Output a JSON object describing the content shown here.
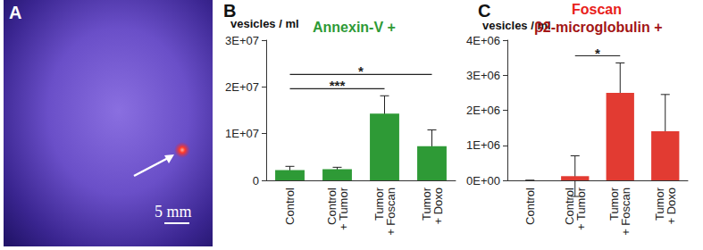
{
  "image_panel": {
    "label": "A",
    "scale_bar": "5 mm"
  },
  "chart_data": [
    {
      "type": "bar",
      "panel": "B",
      "title": "Annexin-V +",
      "ylabel": "vesicles / ml",
      "categories": [
        "Control",
        "Control + Tumor",
        "Tumor + Foscan",
        "Tumor + Doxo"
      ],
      "values": [
        2200000,
        2400000,
        14300000,
        7300000
      ],
      "errors": [
        800000,
        400000,
        3800000,
        3500000
      ],
      "color": "#2e9a36",
      "ylim": [
        0,
        30000000
      ],
      "yticks": [
        0,
        {
          "value": 10000000,
          "label": "1E+07"
        },
        {
          "value": 20000000,
          "label": "2E+07"
        },
        {
          "value": 30000000,
          "label": "3E+07"
        }
      ],
      "grid": false,
      "annotations": [
        {
          "between": [
            "Control",
            "Tumor + Foscan"
          ],
          "text": "***"
        },
        {
          "between": [
            "Control",
            "Tumor + Doxo"
          ],
          "text": "*"
        }
      ]
    },
    {
      "type": "bar",
      "panel": "C",
      "title": "Foscan",
      "subtitle": "β2-microglobulin +",
      "ylabel": "vesicles / ml",
      "categories": [
        "Control",
        "Control + Tumor",
        "Tumor + Foscan",
        "Tumor + Doxo"
      ],
      "values": [
        0,
        120000,
        2500000,
        1400000
      ],
      "errors": [
        0,
        580000,
        850000,
        1050000
      ],
      "color": "#e23b32",
      "ylim": [
        0,
        4000000
      ],
      "yticks": [
        {
          "value": 0,
          "label": "0E+00"
        },
        {
          "value": 1000000,
          "label": "1E+06"
        },
        {
          "value": 2000000,
          "label": "2E+06"
        },
        {
          "value": 3000000,
          "label": "3E+06"
        },
        {
          "value": 4000000,
          "label": "4E+06"
        }
      ],
      "grid": false,
      "annotations": [
        {
          "between": [
            "Control + Tumor",
            "Tumor + Foscan"
          ],
          "text": "*"
        }
      ]
    }
  ]
}
